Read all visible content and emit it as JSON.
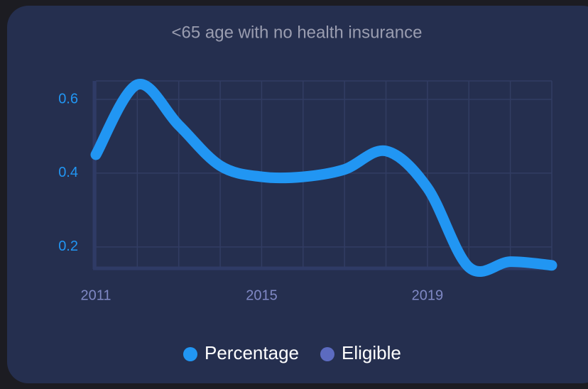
{
  "chart_data": {
    "type": "line",
    "title": "<65 age with no health insurance",
    "x": [
      2011,
      2012,
      2013,
      2014,
      2015,
      2016,
      2017,
      2018,
      2019,
      2020,
      2021,
      2022
    ],
    "series": [
      {
        "name": "Percentage",
        "color": "#2196f3",
        "values": [
          0.45,
          0.64,
          0.53,
          0.42,
          0.39,
          0.39,
          0.41,
          0.46,
          0.36,
          0.145,
          0.16,
          0.15
        ]
      },
      {
        "name": "Eligible",
        "color": "#5c6bc0"
      }
    ],
    "xlim": [
      2011,
      2022
    ],
    "xticks": [
      2011,
      2015,
      2019
    ],
    "ylim": [
      0.14,
      0.65
    ],
    "yticks": [
      0.2,
      0.4,
      0.6
    ],
    "grid": true,
    "legend": "bottom"
  }
}
